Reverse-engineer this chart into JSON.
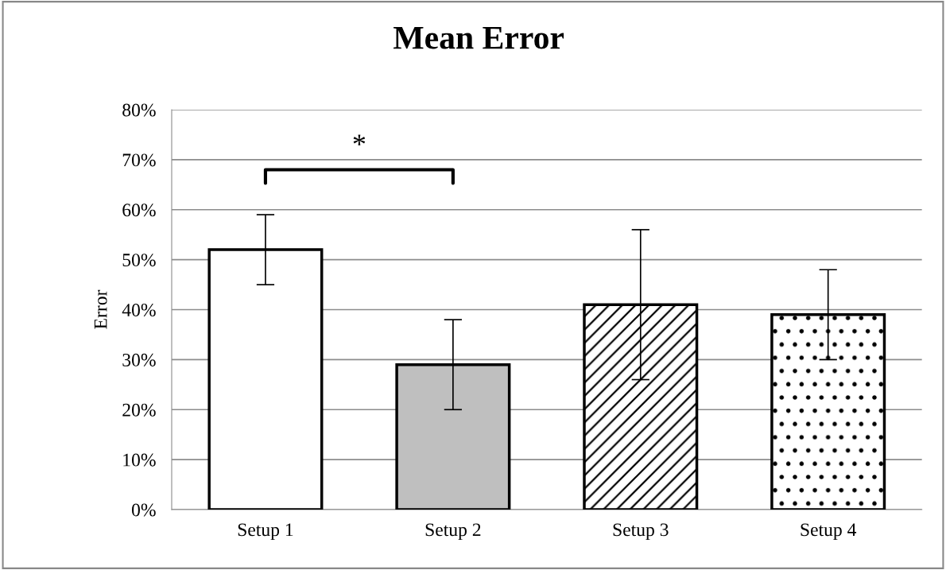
{
  "chart_data": {
    "type": "bar",
    "title": "Mean Error",
    "ylabel": "Error",
    "categories": [
      "Setup 1",
      "Setup 2",
      "Setup 3",
      "Setup 4"
    ],
    "values": [
      52,
      29,
      41,
      39
    ],
    "errors": [
      7,
      9,
      15,
      9
    ],
    "colors": [
      "#ffffff",
      "#bfbfbf",
      "#ffffff",
      "#ffffff"
    ],
    "ylim": [
      0,
      80
    ],
    "yticks": [
      {
        "value": 0,
        "label": "0%"
      },
      {
        "value": 10,
        "label": "10%"
      },
      {
        "value": 20,
        "label": "20%"
      },
      {
        "value": 30,
        "label": "30%"
      },
      {
        "value": 40,
        "label": "40%"
      },
      {
        "value": 50,
        "label": "50%"
      },
      {
        "value": 60,
        "label": "60%"
      },
      {
        "value": 70,
        "label": "70%"
      },
      {
        "value": 80,
        "label": "80%"
      }
    ],
    "grid": "y",
    "annotations": [
      "*"
    ]
  }
}
